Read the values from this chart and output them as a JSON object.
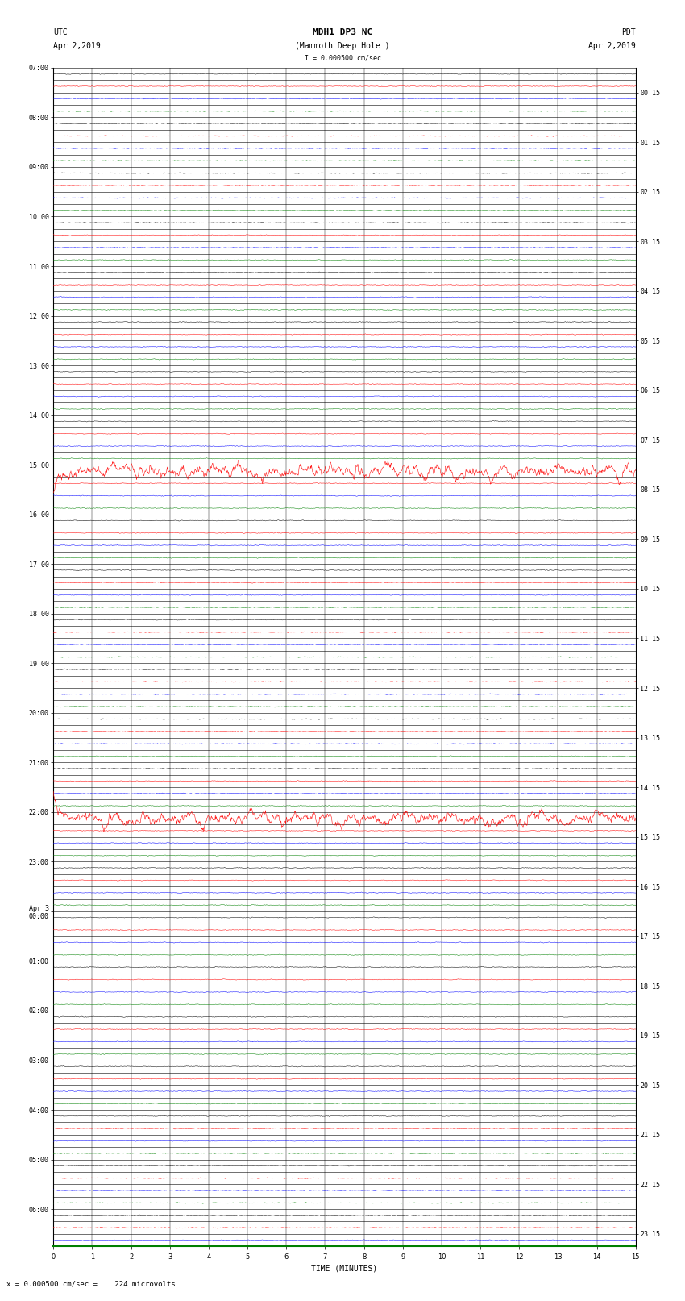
{
  "title_line1": "MDH1 DP3 NC",
  "title_line2": "(Mammoth Deep Hole )",
  "scale_text": "I = 0.000500 cm/sec",
  "utc_label": "UTC",
  "utc_date": "Apr 2,2019",
  "pdt_label": "PDT",
  "pdt_date": "Apr 2,2019",
  "xlabel": "TIME (MINUTES)",
  "bottom_label": "= 0.000500 cm/sec =    224 microvolts",
  "bg_color": "#ffffff",
  "left_labels_utc": [
    "07:00",
    "08:00",
    "09:00",
    "10:00",
    "11:00",
    "12:00",
    "13:00",
    "14:00",
    "15:00",
    "16:00",
    "17:00",
    "18:00",
    "19:00",
    "20:00",
    "21:00",
    "22:00",
    "23:00",
    "Apr 3\n00:00",
    "01:00",
    "02:00",
    "03:00",
    "04:00",
    "05:00",
    "06:00"
  ],
  "left_label_rows": [
    0,
    4,
    8,
    12,
    16,
    20,
    24,
    28,
    32,
    36,
    40,
    44,
    48,
    52,
    56,
    60,
    64,
    68,
    72,
    76,
    80,
    84,
    88,
    92
  ],
  "right_labels_pdt": [
    "00:15",
    "01:15",
    "02:15",
    "03:15",
    "04:15",
    "05:15",
    "06:15",
    "07:15",
    "08:15",
    "09:15",
    "10:15",
    "11:15",
    "12:15",
    "13:15",
    "14:15",
    "15:15",
    "16:15",
    "17:15",
    "18:15",
    "19:15",
    "20:15",
    "21:15",
    "22:15",
    "23:15"
  ],
  "right_label_rows": [
    2,
    6,
    10,
    14,
    18,
    22,
    26,
    30,
    34,
    38,
    42,
    46,
    50,
    54,
    58,
    62,
    66,
    70,
    74,
    78,
    82,
    86,
    90,
    94
  ],
  "num_rows": 95,
  "row_colors_pattern": [
    "black",
    "red",
    "blue",
    "green"
  ],
  "red_full_rows": [
    32,
    60
  ],
  "green_full_rows": [
    3
  ],
  "noise_amp": 0.06,
  "title_fontsize": 8,
  "label_fontsize": 7,
  "tick_fontsize": 6
}
